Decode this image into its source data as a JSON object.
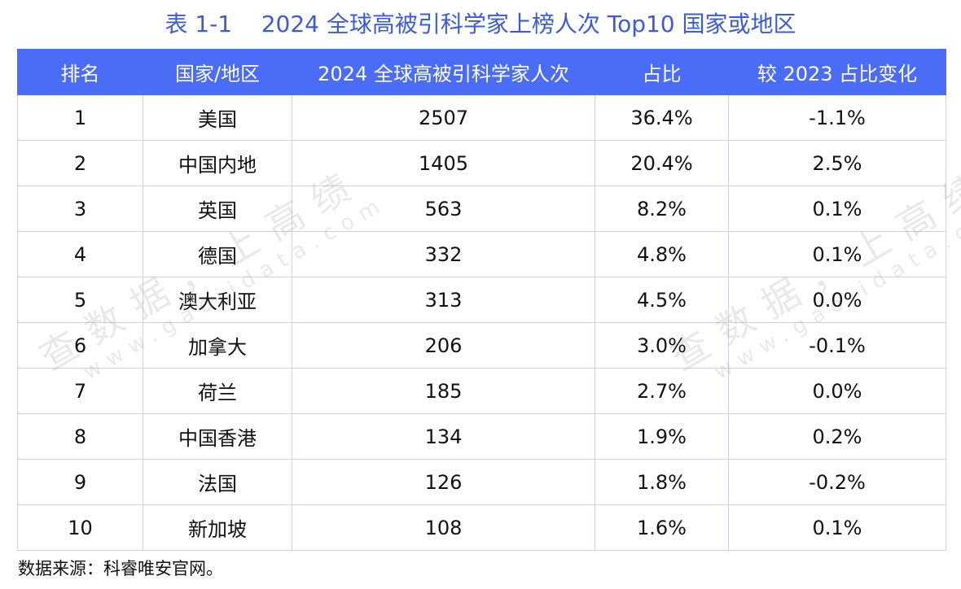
{
  "title": "表 1-1    2024 全球高被引科学家上榜人次 Top10 国家或地区",
  "watermark": {
    "main": "查数据，上高绩",
    "sub": "www.gaojidata.com"
  },
  "source": "数据来源：科睿唯安官网。",
  "chart_data": {
    "type": "table",
    "columns": [
      "排名",
      "国家/地区",
      "2024 全球高被引科学家人次",
      "占比",
      "较 2023 占比变化"
    ],
    "rows": [
      [
        "1",
        "美国",
        "2507",
        "36.4%",
        "-1.1%"
      ],
      [
        "2",
        "中国内地",
        "1405",
        "20.4%",
        "2.5%"
      ],
      [
        "3",
        "英国",
        "563",
        "8.2%",
        "0.1%"
      ],
      [
        "4",
        "德国",
        "332",
        "4.8%",
        "0.1%"
      ],
      [
        "5",
        "澳大利亚",
        "313",
        "4.5%",
        "0.0%"
      ],
      [
        "6",
        "加拿大",
        "206",
        "3.0%",
        "-0.1%"
      ],
      [
        "7",
        "荷兰",
        "185",
        "2.7%",
        "0.0%"
      ],
      [
        "8",
        "中国香港",
        "134",
        "1.9%",
        "0.2%"
      ],
      [
        "9",
        "法国",
        "126",
        "1.8%",
        "-0.2%"
      ],
      [
        "10",
        "新加坡",
        "108",
        "1.6%",
        "0.1%"
      ]
    ]
  }
}
